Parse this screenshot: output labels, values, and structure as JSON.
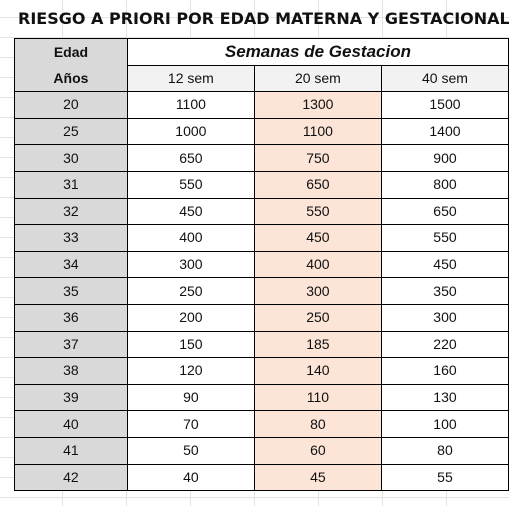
{
  "title": "RIESGO A PRIORI POR EDAD MATERNA Y GESTACIONAL",
  "table": {
    "age_header_line1": "Edad",
    "age_header_line2": "Años",
    "group_header": "Semanas de Gestacion",
    "week_headers": [
      "12 sem",
      "20 sem",
      "40 sem"
    ],
    "rows": [
      {
        "age": "20",
        "w12": "1100",
        "w20": "1300",
        "w40": "1500"
      },
      {
        "age": "25",
        "w12": "1000",
        "w20": "1100",
        "w40": "1400"
      },
      {
        "age": "30",
        "w12": "650",
        "w20": "750",
        "w40": "900"
      },
      {
        "age": "31",
        "w12": "550",
        "w20": "650",
        "w40": "800"
      },
      {
        "age": "32",
        "w12": "450",
        "w20": "550",
        "w40": "650"
      },
      {
        "age": "33",
        "w12": "400",
        "w20": "450",
        "w40": "550"
      },
      {
        "age": "34",
        "w12": "300",
        "w20": "400",
        "w40": "450"
      },
      {
        "age": "35",
        "w12": "250",
        "w20": "300",
        "w40": "350"
      },
      {
        "age": "36",
        "w12": "200",
        "w20": "250",
        "w40": "300"
      },
      {
        "age": "37",
        "w12": "150",
        "w20": "185",
        "w40": "220"
      },
      {
        "age": "38",
        "w12": "120",
        "w20": "140",
        "w40": "160"
      },
      {
        "age": "39",
        "w12": "90",
        "w20": "110",
        "w40": "130"
      },
      {
        "age": "40",
        "w12": "70",
        "w20": "80",
        "w40": "100"
      },
      {
        "age": "41",
        "w12": "50",
        "w20": "60",
        "w40": "80"
      },
      {
        "age": "42",
        "w12": "40",
        "w20": "45",
        "w40": "55"
      }
    ]
  },
  "colors": {
    "age_column_fill": "#d9d9d9",
    "week_header_fill": "#f2f2f2",
    "highlight_column_fill": "#fce4d6",
    "border": "#000000"
  }
}
